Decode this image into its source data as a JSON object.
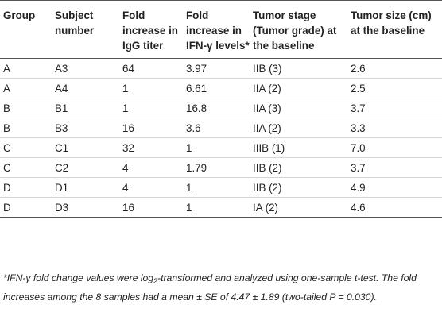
{
  "table": {
    "headers": [
      "Group",
      "Subject number",
      "Fold increase in IgG titer",
      "Fold increase in IFN-γ levels*",
      "Tumor stage (Tumor grade) at the baseline",
      "Tumor size (cm) at the baseline"
    ],
    "rows": [
      [
        "A",
        "A3",
        "64",
        "3.97",
        "IIB (3)",
        "2.6"
      ],
      [
        "A",
        "A4",
        "1",
        "6.61",
        "IIA (2)",
        "2.5"
      ],
      [
        "B",
        "B1",
        "1",
        "16.8",
        "IIA (3)",
        "3.7"
      ],
      [
        "B",
        "B3",
        "16",
        "3.6",
        "IIA (2)",
        "3.3"
      ],
      [
        "C",
        "C1",
        "32",
        "1",
        "IIIB (1)",
        "7.0"
      ],
      [
        "C",
        "C2",
        "4",
        "1.79",
        "IIB (2)",
        "3.7"
      ],
      [
        "D",
        "D1",
        "4",
        "1",
        "IIB (2)",
        "4.9"
      ],
      [
        "D",
        "D3",
        "16",
        "1",
        "IA (2)",
        "4.6"
      ]
    ]
  },
  "footnote": {
    "part1": "*IFN-γ fold change values were log",
    "sub": "2",
    "part2": "-transformed and analyzed using one-sample t-test. The fold increases among the 8 samples had a mean ± SE of 4.47 ± 1.89 (two-tailed P = 0.030)."
  }
}
